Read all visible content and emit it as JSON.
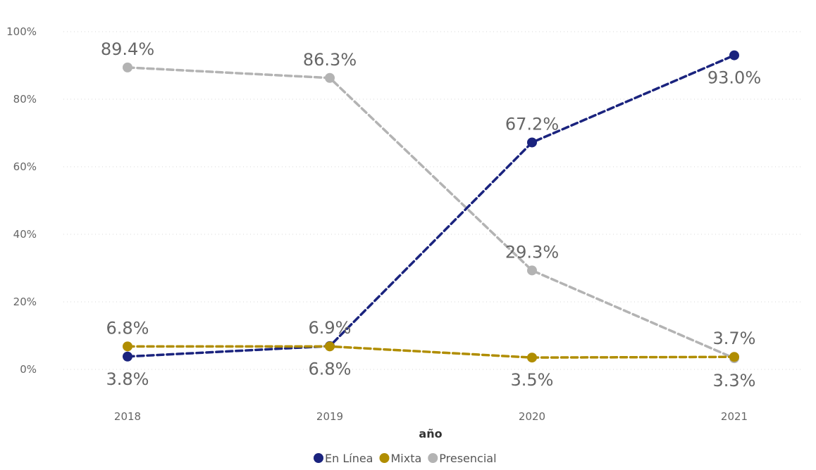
{
  "chart_data": {
    "type": "line",
    "title": "",
    "xlabel": "año",
    "ylabel": "",
    "categories": [
      "2018",
      "2019",
      "2020",
      "2021"
    ],
    "ylim": [
      0,
      100
    ],
    "yticks": [
      "0%",
      "20%",
      "40%",
      "60%",
      "80%",
      "100%"
    ],
    "grid": true,
    "legend_position": "bottom",
    "series": [
      {
        "name": "En Línea",
        "color": "#1a237e",
        "values": [
          3.8,
          6.9,
          67.2,
          93.0
        ],
        "labels": [
          "3.8%",
          "6.9%",
          "67.2%",
          "93.0%"
        ],
        "label_positions": [
          "below",
          "above",
          "above",
          "below"
        ]
      },
      {
        "name": "Mixta",
        "color": "#b08d00",
        "values": [
          6.8,
          6.8,
          3.5,
          3.7
        ],
        "labels": [
          "6.8%",
          "6.8%",
          "3.5%",
          "3.7%"
        ],
        "label_positions": [
          "above",
          "below",
          "below",
          "above"
        ]
      },
      {
        "name": "Presencial",
        "color": "#b3b3b3",
        "values": [
          89.4,
          86.3,
          29.3,
          3.3
        ],
        "labels": [
          "89.4%",
          "86.3%",
          "29.3%",
          "3.3%"
        ],
        "label_positions": [
          "above",
          "above",
          "above",
          "below"
        ]
      }
    ]
  }
}
